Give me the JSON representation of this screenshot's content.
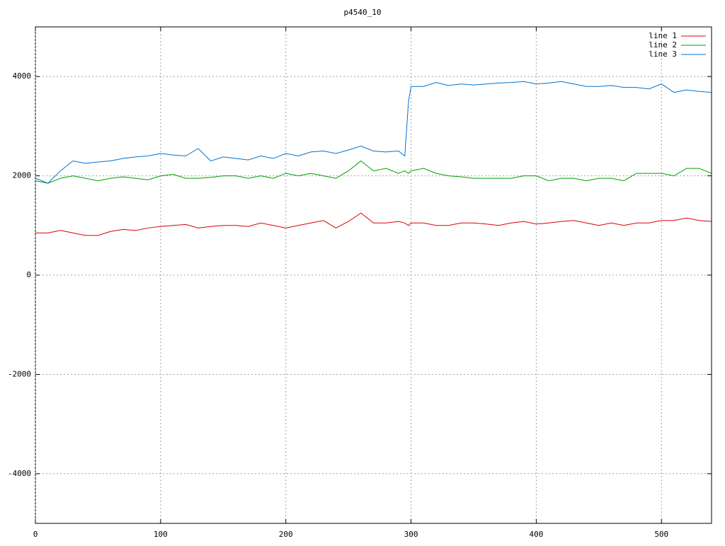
{
  "chart_data": {
    "type": "line",
    "title": "p4540_10",
    "x": [
      0,
      10,
      20,
      30,
      40,
      50,
      60,
      70,
      80,
      90,
      100,
      110,
      120,
      130,
      140,
      150,
      160,
      170,
      180,
      190,
      200,
      210,
      220,
      230,
      240,
      250,
      260,
      270,
      280,
      290,
      295,
      298,
      300,
      310,
      320,
      330,
      340,
      350,
      360,
      370,
      380,
      390,
      400,
      410,
      420,
      430,
      440,
      450,
      460,
      470,
      480,
      490,
      500,
      510,
      520,
      530,
      540
    ],
    "series": [
      {
        "name": "line 1",
        "color": "#dd0000",
        "values": [
          850,
          850,
          900,
          850,
          800,
          800,
          880,
          920,
          900,
          950,
          980,
          1000,
          1020,
          950,
          980,
          1000,
          1000,
          980,
          1050,
          1000,
          950,
          1000,
          1050,
          1100,
          950,
          1080,
          1250,
          1050,
          1050,
          1080,
          1050,
          1000,
          1050,
          1050,
          1000,
          1000,
          1050,
          1050,
          1030,
          1000,
          1050,
          1080,
          1030,
          1050,
          1080,
          1100,
          1050,
          1000,
          1050,
          1000,
          1050,
          1050,
          1100,
          1100,
          1150,
          1100,
          1080
        ]
      },
      {
        "name": "line 2",
        "color": "#00a000",
        "values": [
          1900,
          1850,
          1950,
          2000,
          1950,
          1900,
          1950,
          1980,
          1950,
          1920,
          2000,
          2030,
          1950,
          1950,
          1970,
          2000,
          2000,
          1950,
          2000,
          1950,
          2050,
          2000,
          2050,
          2000,
          1950,
          2100,
          2300,
          2100,
          2150,
          2050,
          2100,
          2050,
          2100,
          2150,
          2050,
          2000,
          1980,
          1950,
          1950,
          1950,
          1950,
          2000,
          2000,
          1900,
          1950,
          1950,
          1900,
          1950,
          1950,
          1900,
          2050,
          2050,
          2050,
          2000,
          2150,
          2150,
          2050
        ]
      },
      {
        "name": "line 3",
        "color": "#0072d0",
        "values": [
          1950,
          1850,
          2100,
          2300,
          2250,
          2280,
          2300,
          2350,
          2380,
          2400,
          2450,
          2420,
          2400,
          2550,
          2300,
          2380,
          2350,
          2320,
          2400,
          2350,
          2450,
          2400,
          2480,
          2500,
          2450,
          2520,
          2600,
          2500,
          2480,
          2500,
          2400,
          3500,
          3800,
          3800,
          3880,
          3820,
          3850,
          3830,
          3850,
          3870,
          3880,
          3900,
          3850,
          3870,
          3900,
          3850,
          3800,
          3800,
          3820,
          3780,
          3780,
          3750,
          3850,
          3680,
          3730,
          3700,
          3680
        ]
      }
    ],
    "xlim": [
      0,
      540
    ],
    "ylim": [
      -5000,
      5000
    ],
    "xticks": [
      0,
      100,
      200,
      300,
      400,
      500
    ],
    "yticks": [
      -4000,
      -2000,
      0,
      2000,
      4000
    ],
    "grid": true,
    "legend": "top-right"
  }
}
